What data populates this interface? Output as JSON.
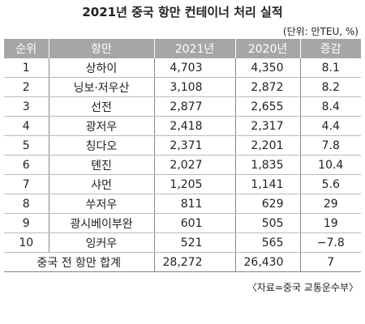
{
  "title": "2021년 중국 항만 컨테이너 처리 실적",
  "unit": "(단위: 만TEU, %)",
  "table": {
    "header": [
      "순위",
      "항만",
      "2021년",
      "2020년",
      "증감"
    ],
    "rows": [
      [
        "1",
        "상하이",
        "4,703",
        "4,350",
        "8.1"
      ],
      [
        "2",
        "닝보·저우산",
        "3,108",
        "2,872",
        "8.2"
      ],
      [
        "3",
        "선전",
        "2,877",
        "2,655",
        "8.4"
      ],
      [
        "4",
        "광저우",
        "2,418",
        "2,317",
        "4.4"
      ],
      [
        "5",
        "칭다오",
        "2,371",
        "2,201",
        "7.8"
      ],
      [
        "6",
        "톈진",
        "2,027",
        "1,835",
        "10.4"
      ],
      [
        "7",
        "샤먼",
        "1,205",
        "1,141",
        "5.6"
      ],
      [
        "8",
        "쑤저우",
        "811",
        "629",
        "29"
      ],
      [
        "9",
        "광시베이부완",
        "601",
        "505",
        "19"
      ],
      [
        "10",
        "잉커우",
        "521",
        "565",
        "−7.8"
      ]
    ],
    "total": [
      "중국 전 항만 합계",
      "28,272",
      "26,430",
      "7"
    ]
  },
  "source": "〈자료=중국 교통운수부〉"
}
